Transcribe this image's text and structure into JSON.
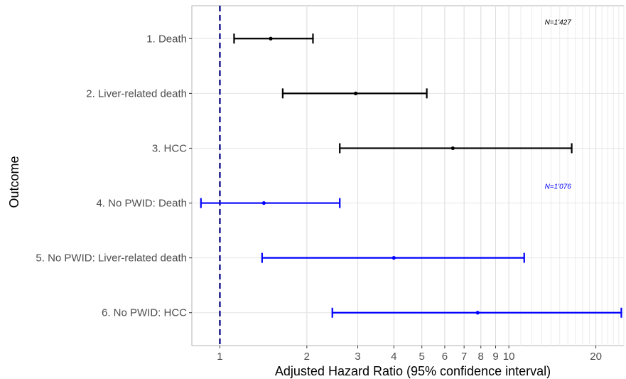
{
  "chart_data": {
    "type": "forest",
    "title": "",
    "xlabel": "Adjusted Hazard Ratio (95% confidence interval)",
    "ylabel": "Outcome",
    "x_scale": "log",
    "xlim": [
      0.8,
      25.0
    ],
    "x_ticks": [
      1,
      2,
      3,
      4,
      5,
      6,
      7,
      8,
      9,
      10,
      20
    ],
    "x_tick_labels": [
      "1",
      "2",
      "3",
      "4",
      "5",
      "6",
      "7",
      "8",
      "9",
      "10",
      "20"
    ],
    "reference_line": {
      "value": 1,
      "style": "dashed",
      "color": "#1a1a8c"
    },
    "grid": true,
    "rows": [
      {
        "label": "1. Death",
        "estimate": 1.5,
        "lower": 1.12,
        "upper": 2.1,
        "color": "#000000"
      },
      {
        "label": "2. Liver-related death",
        "estimate": 2.95,
        "lower": 1.65,
        "upper": 5.2,
        "color": "#000000"
      },
      {
        "label": "3. HCC",
        "estimate": 6.4,
        "lower": 2.6,
        "upper": 16.5,
        "color": "#000000"
      },
      {
        "label": "4. No PWID: Death",
        "estimate": 1.42,
        "lower": 0.86,
        "upper": 2.6,
        "color": "#0000ff"
      },
      {
        "label": "5. No PWID: Liver-related death",
        "estimate": 4.0,
        "lower": 1.4,
        "upper": 11.3,
        "color": "#0000ff"
      },
      {
        "label": "6. No PWID: HCC",
        "estimate": 7.8,
        "lower": 2.45,
        "upper": 24.5,
        "color": "#0000ff"
      }
    ],
    "annotations": [
      {
        "text": "N=1'427",
        "color": "#000000",
        "x": 13.2,
        "row": 1
      },
      {
        "text": "N=1'076",
        "color": "#0000ff",
        "x": 13.2,
        "row": 4
      }
    ]
  }
}
